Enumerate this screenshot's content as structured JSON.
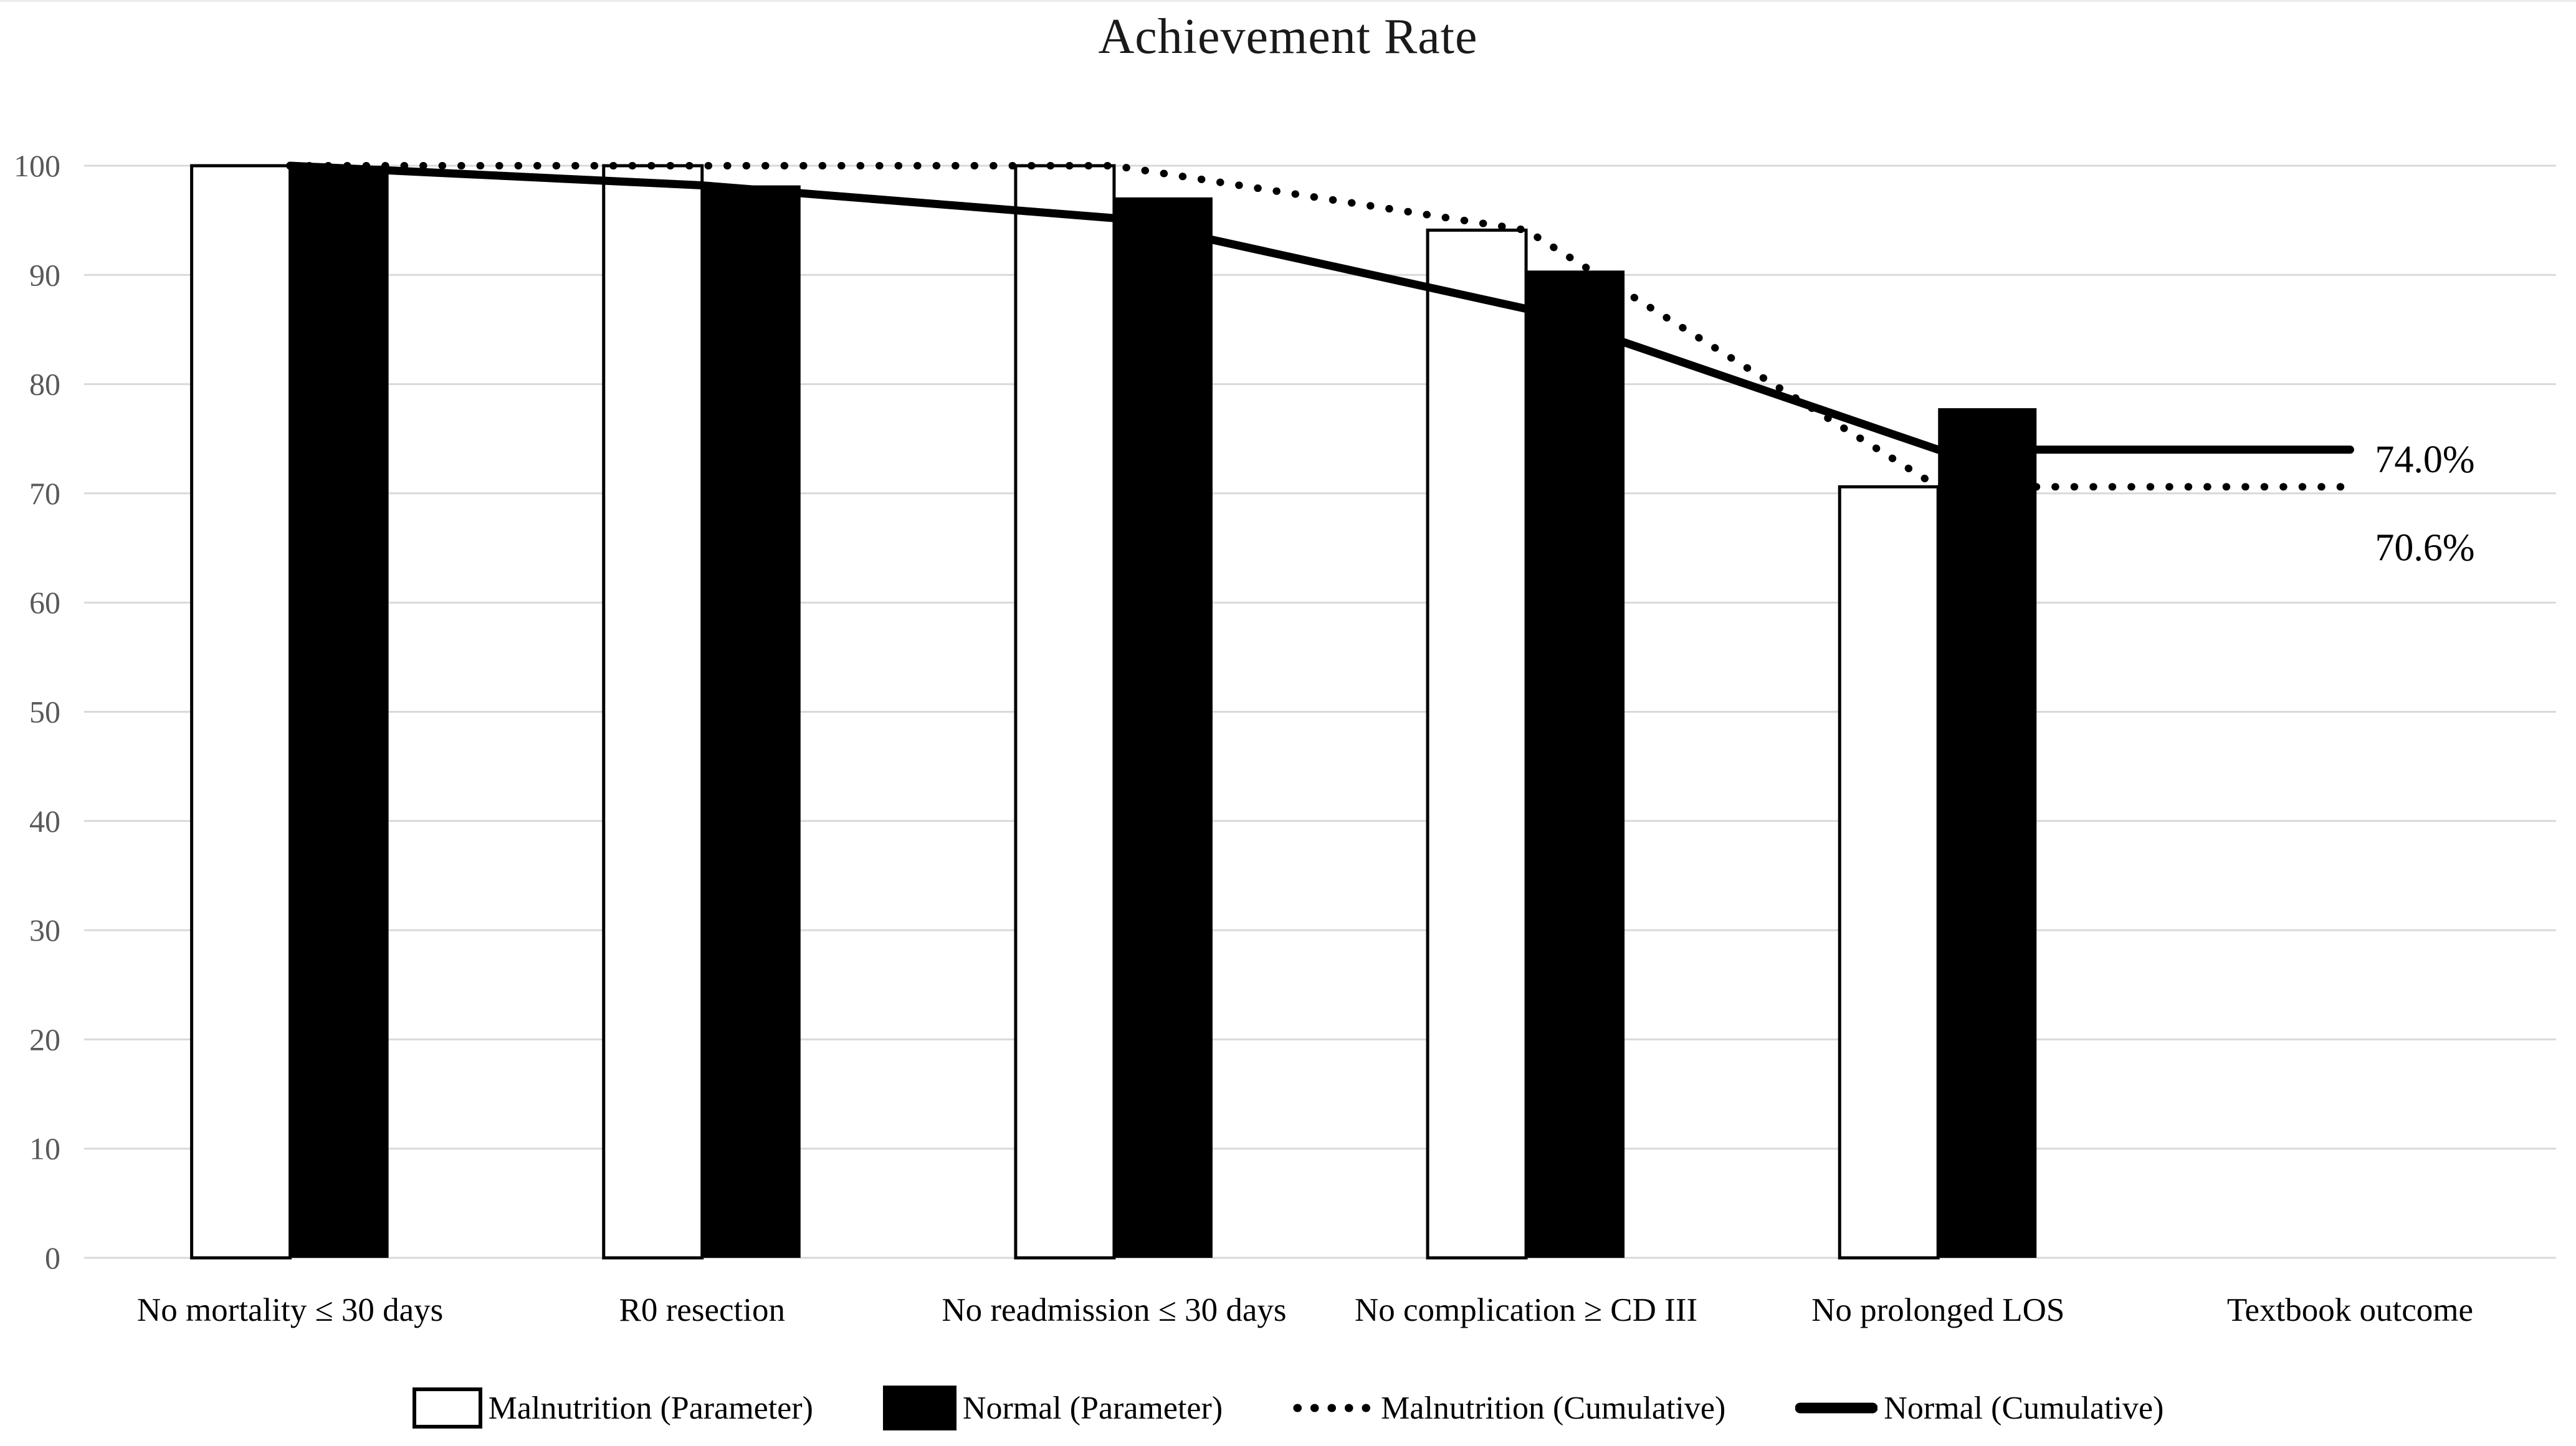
{
  "title": "Achievement Rate",
  "colors": {
    "background": "#ffffff",
    "gridline": "#d9d9d9",
    "y_tick_label": "#595959",
    "x_tick_label": "#000000",
    "bar_malnutrition_fill": "#ffffff",
    "bar_outline": "#000000",
    "bar_normal_fill": "#000000",
    "line_color": "#000000",
    "end_label_color": "#000000"
  },
  "chart_data": {
    "type": "bar",
    "subtype": "grouped-bars-with-cumulative-lines",
    "title": "Achievement Rate",
    "categories": [
      "No mortality ≤ 30 days",
      "R0 resection",
      "No readmission ≤ 30 days",
      "No complication ≥ CD III",
      "No prolonged LOS",
      "Textbook outcome"
    ],
    "series": [
      {
        "name": "Malnutrition (Parameter)",
        "type": "bar",
        "style": "white-outlined",
        "values": [
          100,
          100,
          100,
          94.1,
          70.6,
          null
        ]
      },
      {
        "name": "Normal (Parameter)",
        "type": "bar",
        "style": "solid-black",
        "values": [
          100,
          98.2,
          97.1,
          90.4,
          77.8,
          null
        ]
      },
      {
        "name": "Malnutrition (Cumulative)",
        "type": "line",
        "style": "dotted",
        "values": [
          100,
          100,
          100,
          94.1,
          70.6,
          70.6
        ],
        "end_label": "70.6%"
      },
      {
        "name": "Normal (Cumulative)",
        "type": "line",
        "style": "solid",
        "values": [
          100,
          98.2,
          95.2,
          86.9,
          74.0,
          74.0
        ],
        "end_label": "74.0%"
      }
    ],
    "y_axis": {
      "min": 0,
      "max": 100,
      "step": 10,
      "tick_labels": [
        "0",
        "10",
        "20",
        "30",
        "40",
        "50",
        "60",
        "70",
        "80",
        "90",
        "100"
      ]
    },
    "grid": true,
    "legend_position": "bottom",
    "end_labels": [
      {
        "text": "74.0%",
        "series": "Normal (Cumulative)"
      },
      {
        "text": "70.6%",
        "series": "Malnutrition (Cumulative)"
      }
    ]
  },
  "legend": {
    "items": [
      {
        "label": "Malnutrition (Parameter)",
        "swatch": "bar-white"
      },
      {
        "label": "Normal (Parameter)",
        "swatch": "bar-black"
      },
      {
        "label": "Malnutrition (Cumulative)",
        "swatch": "line-dotted"
      },
      {
        "label": "Normal (Cumulative)",
        "swatch": "line-solid"
      }
    ]
  }
}
